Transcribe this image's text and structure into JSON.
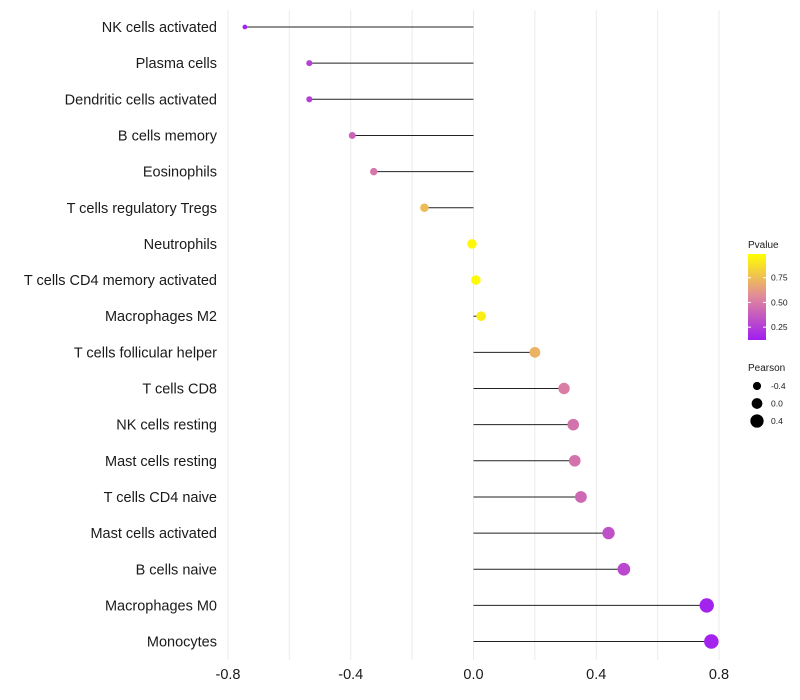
{
  "chart_data": {
    "type": "lollipop",
    "title": "",
    "xlabel": "",
    "ylabel": "",
    "xlim": [
      -0.8,
      0.8
    ],
    "x_ticks": [
      -0.8,
      -0.4,
      0.0,
      0.4,
      0.8
    ],
    "x_tick_labels": [
      "-0.8",
      "-0.4",
      "0.0",
      "0.4",
      "0.8"
    ],
    "categories": [
      "NK cells activated",
      "Plasma cells",
      "Dendritic cells activated",
      "B cells memory",
      "Eosinophils",
      "T cells regulatory  Tregs ",
      "Neutrophils",
      "T cells CD4 memory activated",
      "Macrophages M2",
      "T cells follicular helper",
      "T cells CD8",
      "NK cells resting",
      "Mast cells resting",
      "T cells CD4 naive",
      "Mast cells activated",
      "B cells naive",
      "Macrophages M0",
      "Monocytes"
    ],
    "pearson": [
      -0.745,
      -0.535,
      -0.535,
      -0.395,
      -0.325,
      -0.16,
      -0.005,
      0.008,
      0.025,
      0.2,
      0.295,
      0.325,
      0.33,
      0.35,
      0.44,
      0.49,
      0.76,
      0.775
    ],
    "pvalue": [
      0.02,
      0.16,
      0.16,
      0.33,
      0.42,
      0.72,
      0.97,
      0.98,
      0.93,
      0.68,
      0.45,
      0.4,
      0.4,
      0.35,
      0.24,
      0.2,
      0.02,
      0.02
    ],
    "legend": {
      "position": "right",
      "color_title": "Pvalue",
      "color_ticks": [
        0.75,
        0.5,
        0.25
      ],
      "color_tick_labels": [
        "0.75",
        "0.50",
        "0.25"
      ],
      "color_low": "#a01ef0",
      "color_mid": "#e0889c",
      "color_high": "#ffff00",
      "size_title": "Pearson",
      "size_values": [
        -0.4,
        0.0,
        0.4
      ],
      "size_labels": [
        "-0.4",
        "0.0",
        "0.4"
      ]
    },
    "grid": true,
    "colors": {
      "stem": "#222222",
      "grid": "#ebebeb",
      "text": "#1a1a1a"
    }
  }
}
